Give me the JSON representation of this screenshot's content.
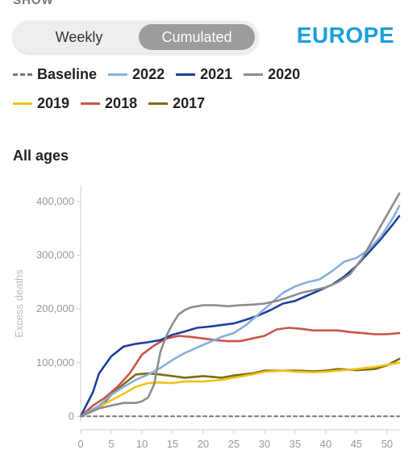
{
  "header": {
    "cut_label": "SHOW",
    "toggle": [
      {
        "label": "Weekly",
        "selected": false
      },
      {
        "label": "Cumulated",
        "selected": true
      }
    ],
    "region": "EUROPE",
    "region_color": "#1a9fd9"
  },
  "legend": [
    {
      "label": "Baseline",
      "color": "#777777",
      "style": "dashed"
    },
    {
      "label": "2022",
      "color": "#85b0dc",
      "style": "solid"
    },
    {
      "label": "2021",
      "color": "#1f3f9c",
      "style": "solid"
    },
    {
      "label": "2020",
      "color": "#8c8c8c",
      "style": "solid"
    },
    {
      "label": "2019",
      "color": "#f0c21c",
      "style": "solid"
    },
    {
      "label": "2018",
      "color": "#c9544a",
      "style": "solid"
    },
    {
      "label": "2017",
      "color": "#7b6c12",
      "style": "solid"
    }
  ],
  "section_title": "All ages",
  "chart_data": {
    "type": "line",
    "title": "All ages",
    "xlabel": "",
    "ylabel": "Excess deaths",
    "xlim": [
      0,
      52
    ],
    "ylim": [
      -10000,
      430000
    ],
    "xticks": [
      "0",
      "5",
      "10",
      "15",
      "20",
      "25",
      "30",
      "35",
      "40",
      "45",
      "50"
    ],
    "xtick_values": [
      0,
      5,
      10,
      15,
      20,
      25,
      30,
      35,
      40,
      45,
      50
    ],
    "yticks": [
      "0",
      "100,000",
      "200,000",
      "300,000",
      "400,000"
    ],
    "ytick_values": [
      0,
      100000,
      200000,
      300000,
      400000
    ],
    "grid": false,
    "series": [
      {
        "name": "Baseline",
        "color": "#777777",
        "dashed": true,
        "points": [
          [
            0,
            0
          ],
          [
            52,
            0
          ]
        ]
      },
      {
        "name": "2017",
        "color": "#7b6c12",
        "points": [
          [
            0,
            0
          ],
          [
            3,
            15000
          ],
          [
            5,
            40000
          ],
          [
            7,
            60000
          ],
          [
            9,
            78000
          ],
          [
            11,
            80000
          ],
          [
            13,
            78000
          ],
          [
            15,
            75000
          ],
          [
            17,
            72000
          ],
          [
            20,
            75000
          ],
          [
            23,
            72000
          ],
          [
            25,
            76000
          ],
          [
            28,
            80000
          ],
          [
            30,
            85000
          ],
          [
            33,
            85000
          ],
          [
            35,
            85000
          ],
          [
            38,
            84000
          ],
          [
            40,
            85000
          ],
          [
            42,
            88000
          ],
          [
            45,
            86000
          ],
          [
            48,
            88000
          ],
          [
            50,
            95000
          ],
          [
            52,
            107000
          ]
        ]
      },
      {
        "name": "2019",
        "color": "#f0c21c",
        "points": [
          [
            0,
            0
          ],
          [
            3,
            18000
          ],
          [
            5,
            30000
          ],
          [
            7,
            42000
          ],
          [
            9,
            55000
          ],
          [
            11,
            62000
          ],
          [
            13,
            63000
          ],
          [
            15,
            62000
          ],
          [
            17,
            65000
          ],
          [
            20,
            65000
          ],
          [
            23,
            68000
          ],
          [
            25,
            72000
          ],
          [
            28,
            78000
          ],
          [
            30,
            83000
          ],
          [
            33,
            85000
          ],
          [
            35,
            83000
          ],
          [
            38,
            82000
          ],
          [
            40,
            83000
          ],
          [
            42,
            85000
          ],
          [
            45,
            88000
          ],
          [
            48,
            92000
          ],
          [
            50,
            96000
          ],
          [
            52,
            100000
          ]
        ]
      },
      {
        "name": "2018",
        "color": "#c9544a",
        "points": [
          [
            0,
            0
          ],
          [
            2,
            20000
          ],
          [
            4,
            35000
          ],
          [
            6,
            55000
          ],
          [
            8,
            80000
          ],
          [
            10,
            115000
          ],
          [
            12,
            132000
          ],
          [
            14,
            145000
          ],
          [
            16,
            150000
          ],
          [
            18,
            148000
          ],
          [
            20,
            145000
          ],
          [
            22,
            142000
          ],
          [
            24,
            140000
          ],
          [
            26,
            140000
          ],
          [
            28,
            145000
          ],
          [
            30,
            150000
          ],
          [
            32,
            162000
          ],
          [
            34,
            165000
          ],
          [
            36,
            163000
          ],
          [
            38,
            160000
          ],
          [
            40,
            160000
          ],
          [
            42,
            160000
          ],
          [
            44,
            157000
          ],
          [
            46,
            155000
          ],
          [
            48,
            153000
          ],
          [
            50,
            153000
          ],
          [
            52,
            155000
          ]
        ]
      },
      {
        "name": "2021",
        "color": "#1f3f9c",
        "points": [
          [
            0,
            0
          ],
          [
            2,
            45000
          ],
          [
            3,
            80000
          ],
          [
            5,
            112000
          ],
          [
            7,
            130000
          ],
          [
            9,
            135000
          ],
          [
            11,
            138000
          ],
          [
            13,
            142000
          ],
          [
            15,
            152000
          ],
          [
            17,
            158000
          ],
          [
            19,
            165000
          ],
          [
            21,
            167000
          ],
          [
            23,
            170000
          ],
          [
            25,
            173000
          ],
          [
            27,
            180000
          ],
          [
            29,
            188000
          ],
          [
            31,
            198000
          ],
          [
            33,
            210000
          ],
          [
            35,
            215000
          ],
          [
            37,
            225000
          ],
          [
            39,
            235000
          ],
          [
            41,
            245000
          ],
          [
            43,
            260000
          ],
          [
            45,
            280000
          ],
          [
            47,
            305000
          ],
          [
            49,
            330000
          ],
          [
            51,
            358000
          ],
          [
            52,
            373000
          ]
        ]
      },
      {
        "name": "2022",
        "color": "#85b0dc",
        "points": [
          [
            0,
            0
          ],
          [
            3,
            20000
          ],
          [
            5,
            40000
          ],
          [
            7,
            55000
          ],
          [
            9,
            68000
          ],
          [
            11,
            78000
          ],
          [
            13,
            90000
          ],
          [
            15,
            105000
          ],
          [
            17,
            118000
          ],
          [
            19,
            128000
          ],
          [
            21,
            138000
          ],
          [
            23,
            148000
          ],
          [
            25,
            155000
          ],
          [
            27,
            170000
          ],
          [
            29,
            190000
          ],
          [
            31,
            210000
          ],
          [
            33,
            230000
          ],
          [
            35,
            242000
          ],
          [
            37,
            250000
          ],
          [
            39,
            255000
          ],
          [
            41,
            270000
          ],
          [
            43,
            288000
          ],
          [
            45,
            295000
          ],
          [
            47,
            310000
          ],
          [
            49,
            335000
          ],
          [
            51,
            370000
          ],
          [
            52,
            392000
          ]
        ]
      },
      {
        "name": "2020",
        "color": "#8c8c8c",
        "points": [
          [
            0,
            0
          ],
          [
            3,
            15000
          ],
          [
            5,
            20000
          ],
          [
            7,
            25000
          ],
          [
            9,
            25000
          ],
          [
            10,
            28000
          ],
          [
            11,
            35000
          ],
          [
            12,
            60000
          ],
          [
            13,
            120000
          ],
          [
            14,
            150000
          ],
          [
            15,
            172000
          ],
          [
            16,
            190000
          ],
          [
            17,
            198000
          ],
          [
            18,
            203000
          ],
          [
            20,
            207000
          ],
          [
            22,
            207000
          ],
          [
            24,
            205000
          ],
          [
            26,
            207000
          ],
          [
            28,
            208000
          ],
          [
            30,
            210000
          ],
          [
            32,
            215000
          ],
          [
            34,
            222000
          ],
          [
            36,
            230000
          ],
          [
            38,
            235000
          ],
          [
            40,
            240000
          ],
          [
            42,
            250000
          ],
          [
            44,
            265000
          ],
          [
            46,
            295000
          ],
          [
            48,
            335000
          ],
          [
            50,
            375000
          ],
          [
            52,
            415000
          ]
        ]
      }
    ]
  }
}
